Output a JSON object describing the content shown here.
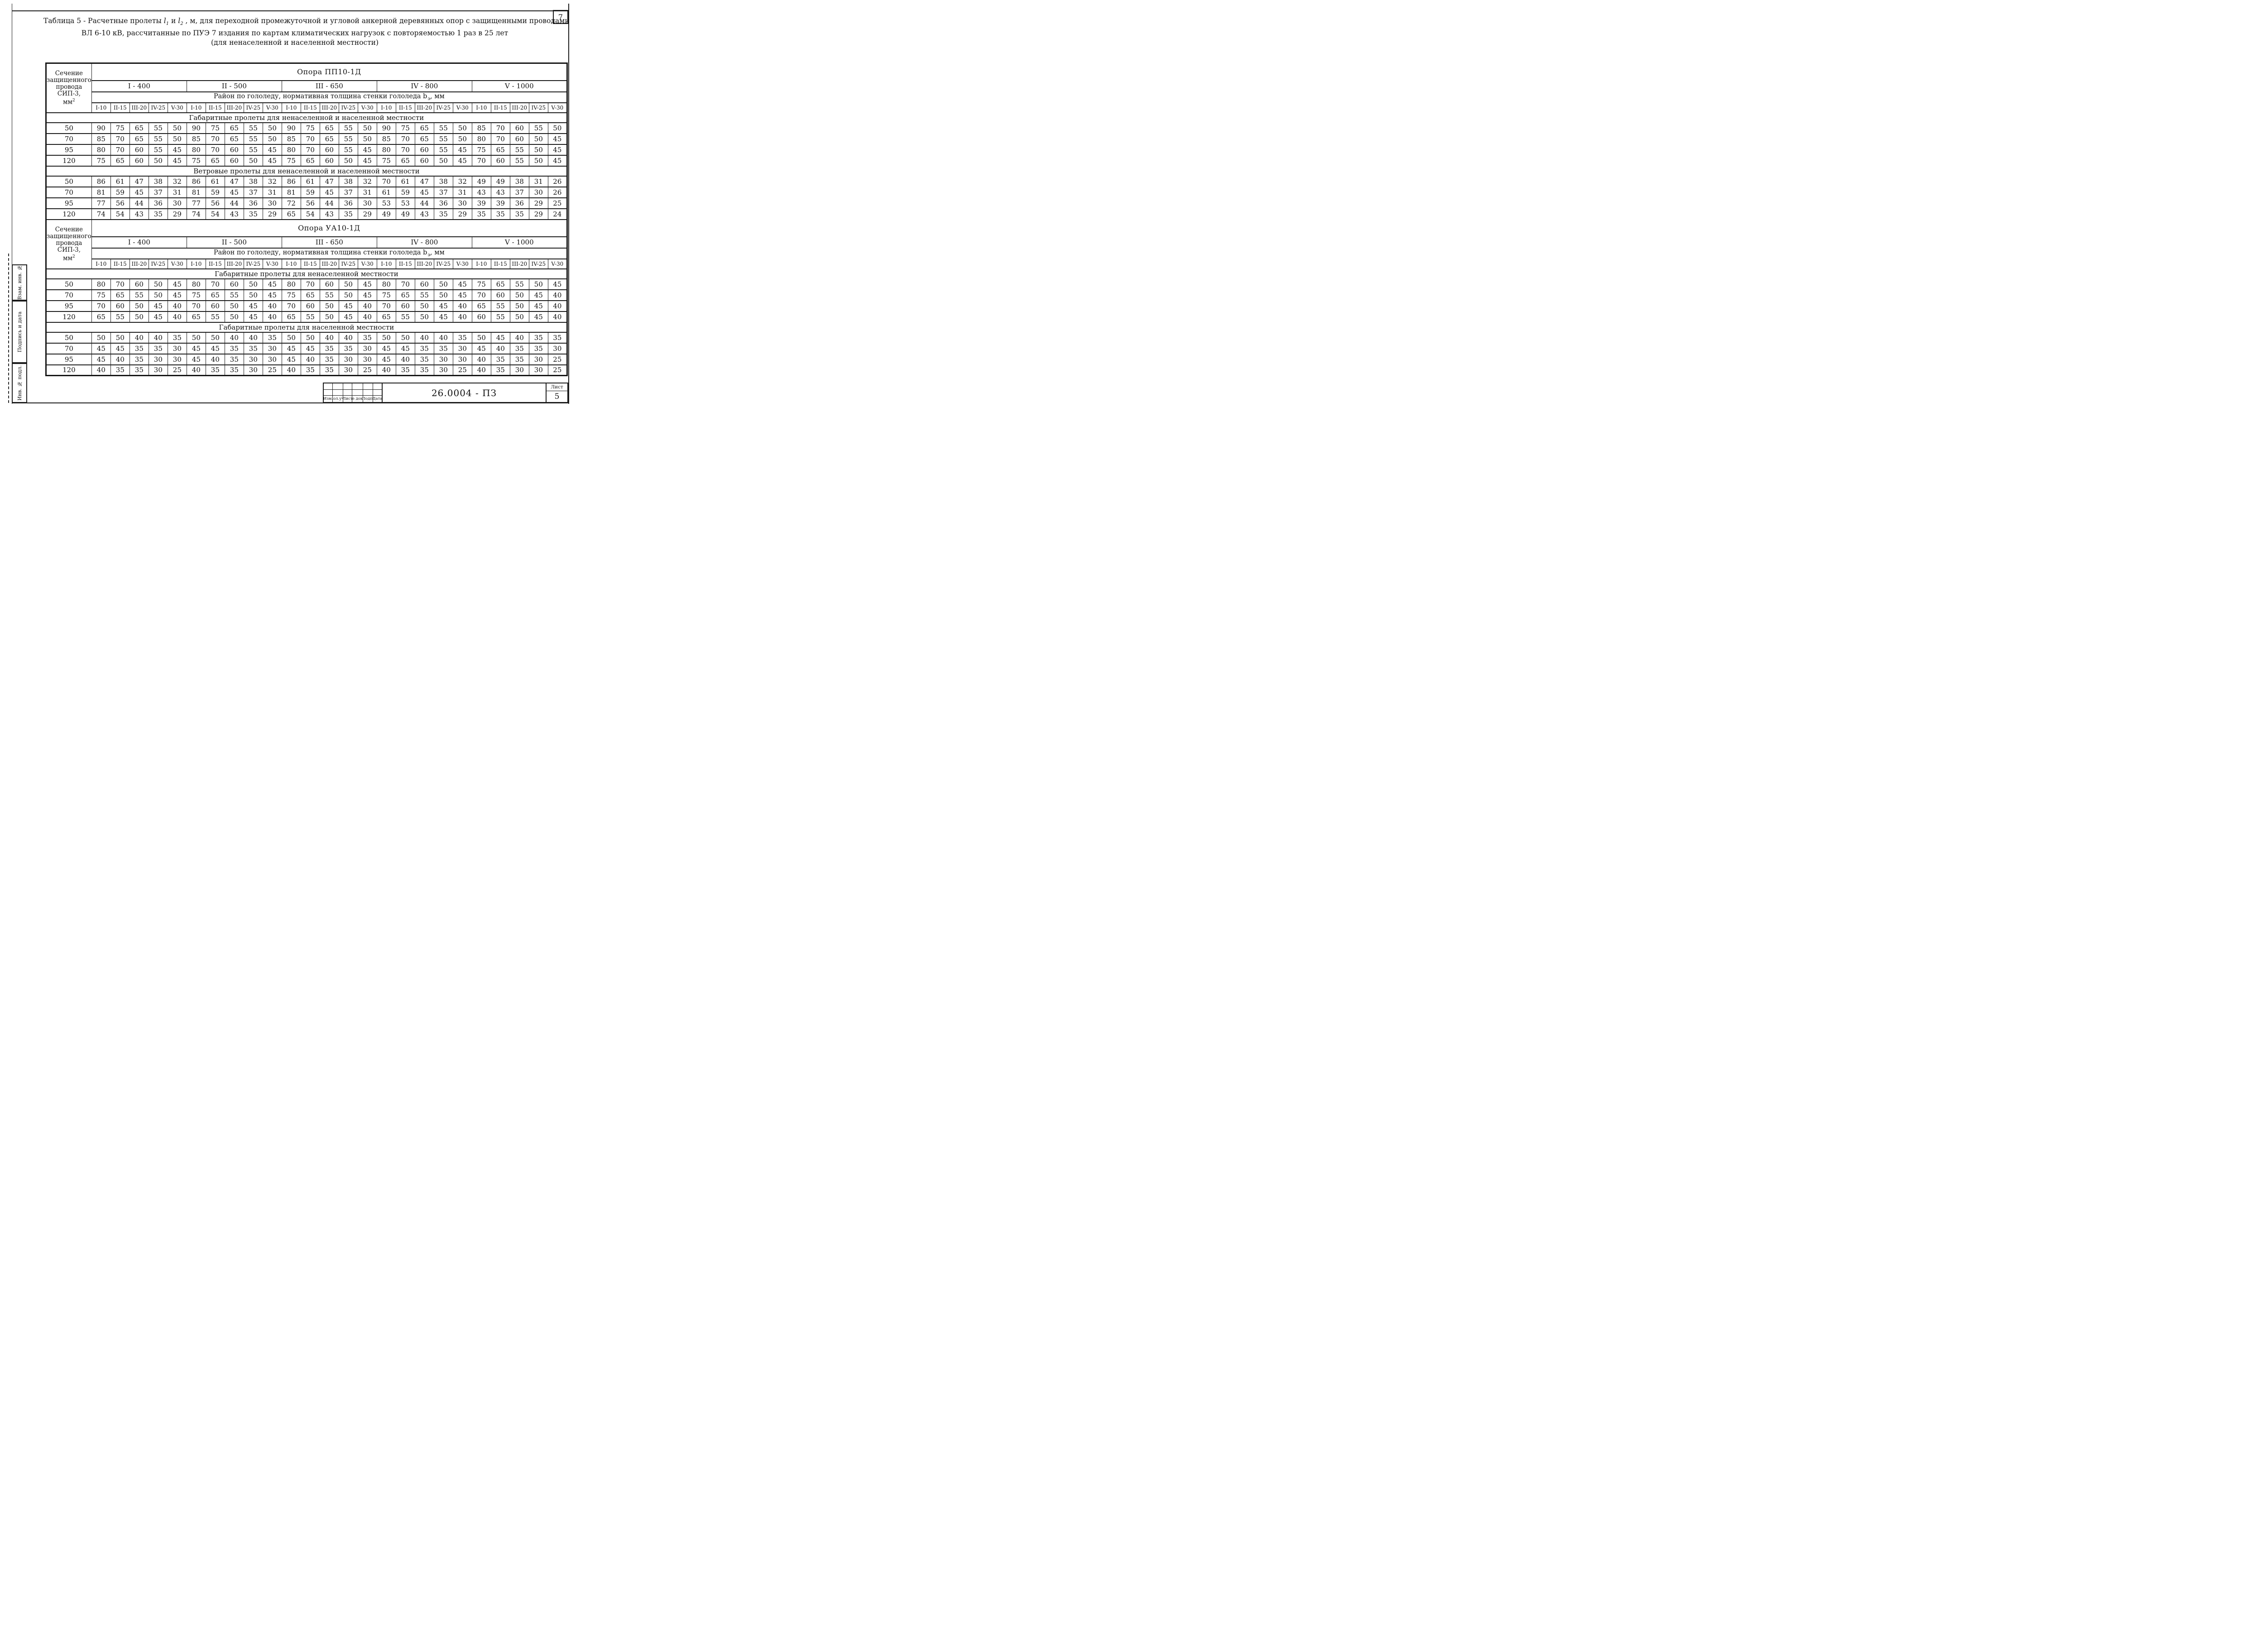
{
  "page": {
    "number": "7"
  },
  "title": {
    "line1_prefix": "Таблица  5  - Расчетные пролеты ",
    "l_symbol": "l",
    "l1_sub": "1",
    "mid": " и ",
    "l2_sub": "2",
    "line1_suffix": " , м,  для переходной промежуточной и угловой анкерной  деревянных опор с защищенными проводами",
    "line2": "ВЛ  6-10 кВ,  рассчитанные по ПУЭ 7 издания по картам климатических нагрузок  с повторяемостью 1 раз в 25 лет",
    "line3": "(для ненаселенной и населенной местности)"
  },
  "table": {
    "corner_lines": [
      "Сечение",
      "защищенного",
      "провода",
      "СИП-3,"
    ],
    "unit_base": "мм",
    "unit_sup": "2",
    "groups": [
      "I - 400",
      "II - 500",
      "III - 650",
      "IV - 800",
      "V - 1000"
    ],
    "ice_prefix": "Район по гололеду, нормативная толщина стенки гололеда b",
    "ice_sub": "э",
    "ice_suffix": ", мм",
    "subcols": [
      "I-10",
      "II-15",
      "III-20",
      "IV-25",
      "V-30"
    ],
    "blocks": [
      {
        "opora": "Опора ПП10-1Д",
        "sections": [
          {
            "title": "Габаритные пролеты для ненаселенной и населенной местности",
            "rows": [
              {
                "mm": "50",
                "values": [
                  90,
                  75,
                  65,
                  55,
                  50,
                  90,
                  75,
                  65,
                  55,
                  50,
                  90,
                  75,
                  65,
                  55,
                  50,
                  90,
                  75,
                  65,
                  55,
                  50,
                  85,
                  70,
                  60,
                  55,
                  50
                ]
              },
              {
                "mm": "70",
                "values": [
                  85,
                  70,
                  65,
                  55,
                  50,
                  85,
                  70,
                  65,
                  55,
                  50,
                  85,
                  70,
                  65,
                  55,
                  50,
                  85,
                  70,
                  65,
                  55,
                  50,
                  80,
                  70,
                  60,
                  50,
                  45
                ]
              },
              {
                "mm": "95",
                "values": [
                  80,
                  70,
                  60,
                  55,
                  45,
                  80,
                  70,
                  60,
                  55,
                  45,
                  80,
                  70,
                  60,
                  55,
                  45,
                  80,
                  70,
                  60,
                  55,
                  45,
                  75,
                  65,
                  55,
                  50,
                  45
                ]
              },
              {
                "mm": "120",
                "values": [
                  75,
                  65,
                  60,
                  50,
                  45,
                  75,
                  65,
                  60,
                  50,
                  45,
                  75,
                  65,
                  60,
                  50,
                  45,
                  75,
                  65,
                  60,
                  50,
                  45,
                  70,
                  60,
                  55,
                  50,
                  45
                ]
              }
            ]
          },
          {
            "title": "Ветровые пролеты для ненаселенной и населенной местности",
            "rows": [
              {
                "mm": "50",
                "values": [
                  86,
                  61,
                  47,
                  38,
                  32,
                  86,
                  61,
                  47,
                  38,
                  32,
                  86,
                  61,
                  47,
                  38,
                  32,
                  70,
                  61,
                  47,
                  38,
                  32,
                  49,
                  49,
                  38,
                  31,
                  26
                ]
              },
              {
                "mm": "70",
                "values": [
                  81,
                  59,
                  45,
                  37,
                  31,
                  81,
                  59,
                  45,
                  37,
                  31,
                  81,
                  59,
                  45,
                  37,
                  31,
                  61,
                  59,
                  45,
                  37,
                  31,
                  43,
                  43,
                  37,
                  30,
                  26
                ]
              },
              {
                "mm": "95",
                "values": [
                  77,
                  56,
                  44,
                  36,
                  30,
                  77,
                  56,
                  44,
                  36,
                  30,
                  72,
                  56,
                  44,
                  36,
                  30,
                  53,
                  53,
                  44,
                  36,
                  30,
                  39,
                  39,
                  36,
                  29,
                  25
                ]
              },
              {
                "mm": "120",
                "values": [
                  74,
                  54,
                  43,
                  35,
                  29,
                  74,
                  54,
                  43,
                  35,
                  29,
                  65,
                  54,
                  43,
                  35,
                  29,
                  49,
                  49,
                  43,
                  35,
                  29,
                  35,
                  35,
                  35,
                  29,
                  24
                ]
              }
            ]
          }
        ]
      },
      {
        "opora": "Опора УА10-1Д",
        "sections": [
          {
            "title": "Габаритные пролеты для ненаселенной  местности",
            "rows": [
              {
                "mm": "50",
                "values": [
                  80,
                  70,
                  60,
                  50,
                  45,
                  80,
                  70,
                  60,
                  50,
                  45,
                  80,
                  70,
                  60,
                  50,
                  45,
                  80,
                  70,
                  60,
                  50,
                  45,
                  75,
                  65,
                  55,
                  50,
                  45
                ]
              },
              {
                "mm": "70",
                "values": [
                  75,
                  65,
                  55,
                  50,
                  45,
                  75,
                  65,
                  55,
                  50,
                  45,
                  75,
                  65,
                  55,
                  50,
                  45,
                  75,
                  65,
                  55,
                  50,
                  45,
                  70,
                  60,
                  50,
                  45,
                  40
                ]
              },
              {
                "mm": "95",
                "values": [
                  70,
                  60,
                  50,
                  45,
                  40,
                  70,
                  60,
                  50,
                  45,
                  40,
                  70,
                  60,
                  50,
                  45,
                  40,
                  70,
                  60,
                  50,
                  45,
                  40,
                  65,
                  55,
                  50,
                  45,
                  40
                ]
              },
              {
                "mm": "120",
                "values": [
                  65,
                  55,
                  50,
                  45,
                  40,
                  65,
                  55,
                  50,
                  45,
                  40,
                  65,
                  55,
                  50,
                  45,
                  40,
                  65,
                  55,
                  50,
                  45,
                  40,
                  60,
                  55,
                  50,
                  45,
                  40
                ]
              }
            ]
          },
          {
            "title": "Габаритные пролеты для  населенной местности",
            "rows": [
              {
                "mm": "50",
                "values": [
                  50,
                  50,
                  40,
                  40,
                  35,
                  50,
                  50,
                  40,
                  40,
                  35,
                  50,
                  50,
                  40,
                  40,
                  35,
                  50,
                  50,
                  40,
                  40,
                  35,
                  50,
                  45,
                  40,
                  35,
                  35
                ]
              },
              {
                "mm": "70",
                "values": [
                  45,
                  45,
                  35,
                  35,
                  30,
                  45,
                  45,
                  35,
                  35,
                  30,
                  45,
                  45,
                  35,
                  35,
                  30,
                  45,
                  45,
                  35,
                  35,
                  30,
                  45,
                  40,
                  35,
                  35,
                  30
                ]
              },
              {
                "mm": "95",
                "values": [
                  45,
                  40,
                  35,
                  30,
                  30,
                  45,
                  40,
                  35,
                  30,
                  30,
                  45,
                  40,
                  35,
                  30,
                  30,
                  45,
                  40,
                  35,
                  30,
                  30,
                  40,
                  35,
                  35,
                  30,
                  25
                ]
              },
              {
                "mm": "120",
                "values": [
                  40,
                  35,
                  35,
                  30,
                  25,
                  40,
                  35,
                  35,
                  30,
                  25,
                  40,
                  35,
                  35,
                  30,
                  25,
                  40,
                  35,
                  35,
                  30,
                  25,
                  40,
                  35,
                  30,
                  30,
                  25
                ]
              }
            ]
          }
        ]
      }
    ]
  },
  "sidebar": {
    "labels": [
      "Взам. инв. №",
      "Подпись и дата",
      "Инв. № подл."
    ]
  },
  "titleblock": {
    "columns": [
      "Изм.",
      "Кол.уч.",
      "Лист",
      "№ док.",
      "Подп.",
      "Дата"
    ],
    "doc_code": "26.0004 - ПЗ",
    "sheet_label": "Лист",
    "sheet_number": "5"
  }
}
